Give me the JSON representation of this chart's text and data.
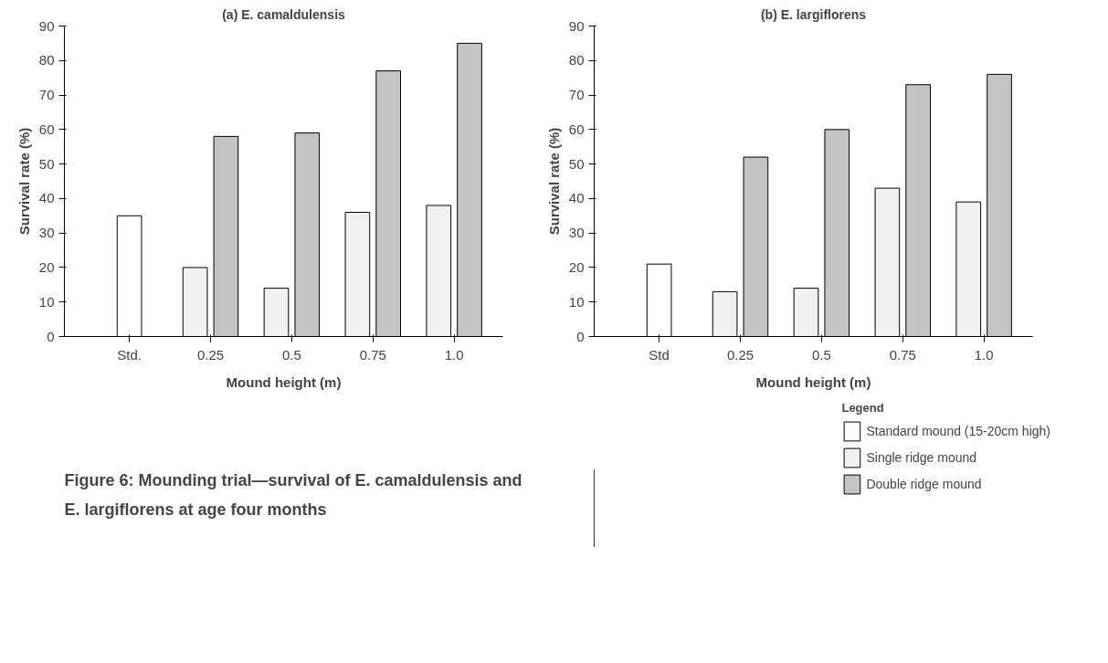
{
  "chart_data": [
    {
      "type": "bar",
      "title": "(a) E. camaldulensis",
      "xlabel": "Mound height (m)",
      "ylabel": "Survival rate (%)",
      "categories": [
        "Std.",
        "0.25",
        "0.5",
        "0.75",
        "1.0"
      ],
      "series": [
        {
          "color": "#ffffff",
          "values": [
            35,
            null,
            null,
            null,
            null
          ]
        },
        {
          "color": "#f0f0f0",
          "values": [
            null,
            20,
            14,
            36,
            38
          ]
        },
        {
          "color": "#c4c4c4",
          "values": [
            null,
            58,
            59,
            77,
            85
          ]
        }
      ],
      "ylim": [
        0,
        90
      ],
      "yticks": [
        0,
        10,
        20,
        30,
        40,
        50,
        60,
        70,
        80,
        90
      ],
      "grid": false,
      "annotations": [
        "Figure 6: Mounding trial—survival of E. camaldulensis and E. largiflorens at age four months"
      ]
    },
    {
      "type": "bar",
      "title": "(b) E. largiflorens",
      "xlabel": "Mound height (m)",
      "ylabel": "Survival rate (%)",
      "categories": [
        "Std",
        "0.25",
        "0.5",
        "0.75",
        "1.0"
      ],
      "series": [
        {
          "name": "Standard mound (15-20cm high)",
          "color": "#ffffff",
          "values": [
            21,
            null,
            null,
            null,
            null
          ]
        },
        {
          "name": "Single ridge mound",
          "color": "#f0f0f0",
          "values": [
            null,
            13,
            14,
            43,
            39
          ]
        },
        {
          "name": "Double ridge mound",
          "color": "#c4c4c4",
          "values": [
            null,
            52,
            60,
            73,
            76
          ]
        }
      ],
      "ylim": [
        0,
        90
      ],
      "yticks": [
        0,
        10,
        20,
        30,
        40,
        50,
        60,
        70,
        80,
        90
      ],
      "grid": false,
      "legend": "bottom right",
      "legend_title": "Legend"
    }
  ]
}
